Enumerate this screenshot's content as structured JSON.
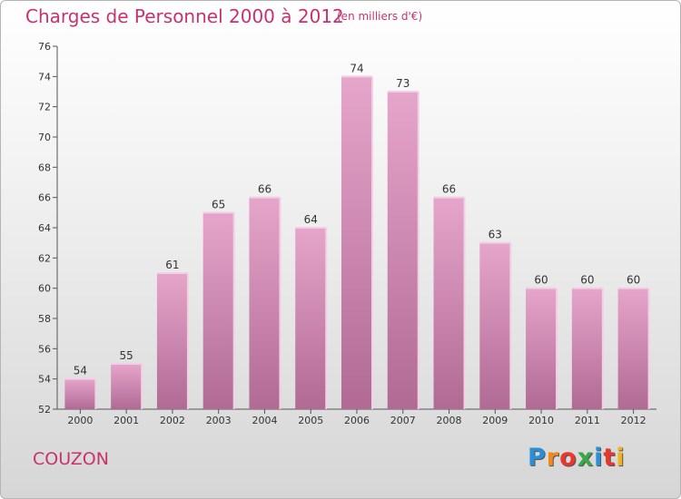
{
  "header": {
    "title": "Charges de Personnel 2000 à 2012",
    "subtitle": "(en milliers d'€)"
  },
  "footer": {
    "commune": "COUZON",
    "logo": {
      "letters": [
        "P",
        "r",
        "o",
        "x",
        "i",
        "t",
        "i"
      ],
      "colors": [
        "#2b8fd6",
        "#f08a1c",
        "#e8382c",
        "#3aa845",
        "#2b8fd6",
        "#e8382c",
        "#f0b41c"
      ]
    }
  },
  "colors": {
    "title": "#c8326e",
    "bar_top": "#e6a5cb",
    "bar_bottom": "#b06a94"
  },
  "chart_data": {
    "type": "bar",
    "categories": [
      "2000",
      "2001",
      "2002",
      "2003",
      "2004",
      "2005",
      "2006",
      "2007",
      "2008",
      "2009",
      "2010",
      "2011",
      "2012"
    ],
    "values": [
      54,
      55,
      61,
      65,
      66,
      64,
      74,
      73,
      66,
      63,
      60,
      60,
      60
    ],
    "title": "Charges de Personnel 2000 à 2012",
    "ylim": [
      52,
      76
    ],
    "yticks": [
      52,
      54,
      56,
      58,
      60,
      62,
      64,
      66,
      68,
      70,
      72,
      74,
      76
    ],
    "grid": false,
    "legend": "none"
  }
}
